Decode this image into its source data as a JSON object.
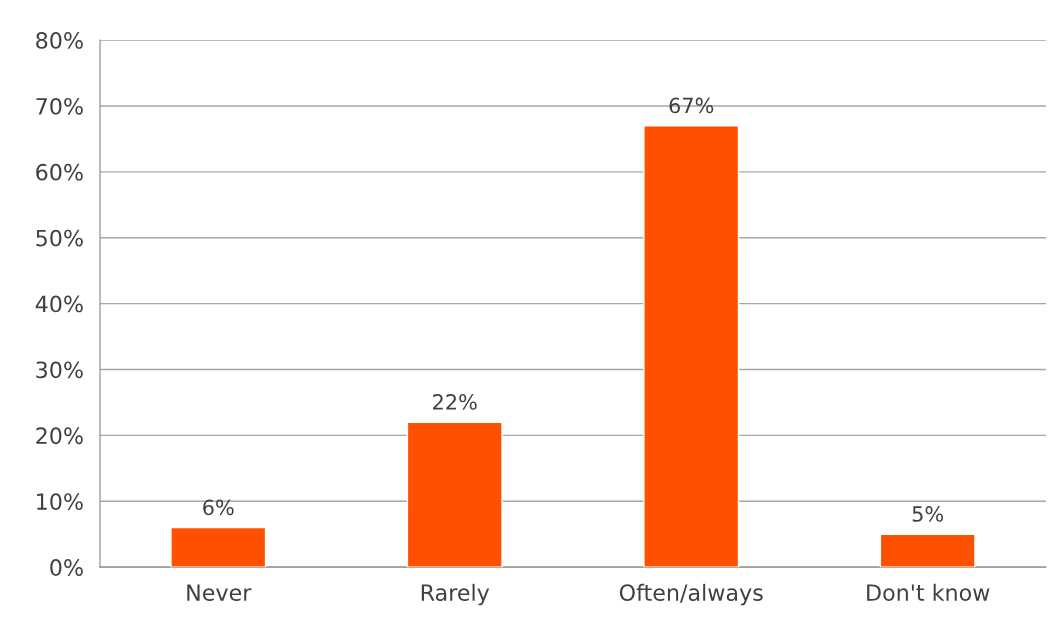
{
  "chart_data": {
    "type": "bar",
    "categories": [
      "Never",
      "Rarely",
      "Often/always",
      "Don't know"
    ],
    "values": [
      6,
      22,
      67,
      5
    ],
    "color": "#ff5000",
    "value_labels": [
      "6%",
      "22%",
      "67%",
      "5%"
    ],
    "ylim": [
      0,
      80
    ],
    "yticks": [
      {
        "value": 0,
        "label": "0%"
      },
      {
        "value": 10,
        "label": "10%"
      },
      {
        "value": 20,
        "label": "20%"
      },
      {
        "value": 30,
        "label": "30%"
      },
      {
        "value": 40,
        "label": "40%"
      },
      {
        "value": 50,
        "label": "50%"
      },
      {
        "value": 60,
        "label": "60%"
      },
      {
        "value": 70,
        "label": "70%"
      },
      {
        "value": 80,
        "label": "80%"
      }
    ],
    "grid": "y",
    "legend": false
  }
}
